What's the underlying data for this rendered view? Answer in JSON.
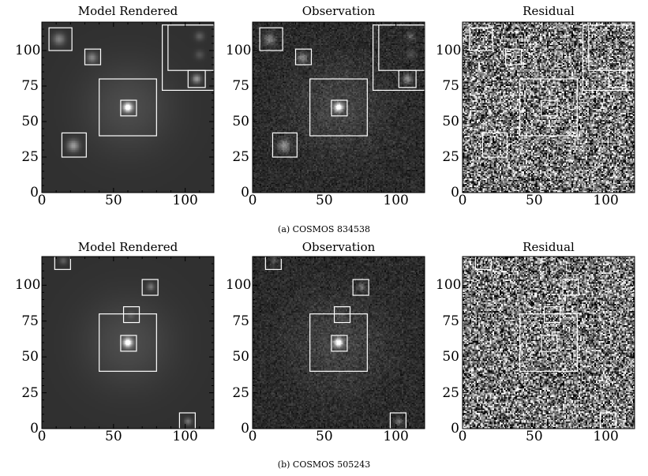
{
  "figures": [
    {
      "caption": "(a) COSMOS 834538",
      "panels": [
        {
          "title": "Model Rendered",
          "kind": "model"
        },
        {
          "title": "Observation",
          "kind": "obs"
        },
        {
          "title": "Residual",
          "kind": "resid"
        }
      ],
      "sources": [
        {
          "x": 60,
          "y": 60,
          "bright": 1.0,
          "size": 6
        },
        {
          "x": 12,
          "y": 108,
          "bright": 0.35,
          "size": 8
        },
        {
          "x": 35,
          "y": 95,
          "bright": 0.35,
          "size": 7
        },
        {
          "x": 22,
          "y": 33,
          "bright": 0.45,
          "size": 8
        },
        {
          "x": 108,
          "y": 80,
          "bright": 0.45,
          "size": 6
        },
        {
          "x": 110,
          "y": 110,
          "bright": 0.2,
          "size": 6
        },
        {
          "x": 110,
          "y": 97,
          "bright": 0.15,
          "size": 6
        }
      ],
      "boxes": [
        {
          "x0": 40,
          "y0": 40,
          "x1": 80,
          "y1": 80
        },
        {
          "x0": 55,
          "y0": 54,
          "x1": 66,
          "y1": 65
        },
        {
          "x0": 5,
          "y0": 100,
          "x1": 21,
          "y1": 116
        },
        {
          "x0": 30,
          "y0": 90,
          "x1": 41,
          "y1": 101
        },
        {
          "x0": 14,
          "y0": 25,
          "x1": 31,
          "y1": 42
        },
        {
          "x0": 102,
          "y0": 74,
          "x1": 114,
          "y1": 86
        },
        {
          "x0": 84,
          "y0": 72,
          "x1": 120,
          "y1": 118
        },
        {
          "x0": 88,
          "y0": 86,
          "x1": 120,
          "y1": 118
        }
      ]
    },
    {
      "caption": "(b) COSMOS 505243",
      "panels": [
        {
          "title": "Model Rendered",
          "kind": "model"
        },
        {
          "title": "Observation",
          "kind": "obs"
        },
        {
          "title": "Residual",
          "kind": "resid"
        }
      ],
      "sources": [
        {
          "x": 60,
          "y": 60,
          "bright": 1.0,
          "size": 6
        },
        {
          "x": 76,
          "y": 99,
          "bright": 0.3,
          "size": 5
        },
        {
          "x": 102,
          "y": 5,
          "bright": 0.3,
          "size": 5
        },
        {
          "x": 15,
          "y": 117,
          "bright": 0.2,
          "size": 5
        },
        {
          "x": 62,
          "y": 79,
          "bright": 0.12,
          "size": 5
        }
      ],
      "boxes": [
        {
          "x0": 40,
          "y0": 40,
          "x1": 80,
          "y1": 80
        },
        {
          "x0": 55,
          "y0": 54,
          "x1": 66,
          "y1": 65
        },
        {
          "x0": 57,
          "y0": 74,
          "x1": 68,
          "y1": 85
        },
        {
          "x0": 70,
          "y0": 93,
          "x1": 81,
          "y1": 104
        },
        {
          "x0": 96,
          "y0": 0,
          "x1": 107,
          "y1": 11
        },
        {
          "x0": 9,
          "y0": 111,
          "x1": 20,
          "y1": 122
        }
      ]
    }
  ],
  "axes": {
    "xlim": [
      0,
      120
    ],
    "ylim": [
      0,
      120
    ],
    "xticks": [
      "0",
      "50",
      "100"
    ],
    "xtick_values": [
      0,
      50,
      100
    ],
    "yticks": [
      "0",
      "25",
      "50",
      "75",
      "100"
    ],
    "ytick_values": [
      0,
      25,
      50,
      75,
      100
    ]
  }
}
